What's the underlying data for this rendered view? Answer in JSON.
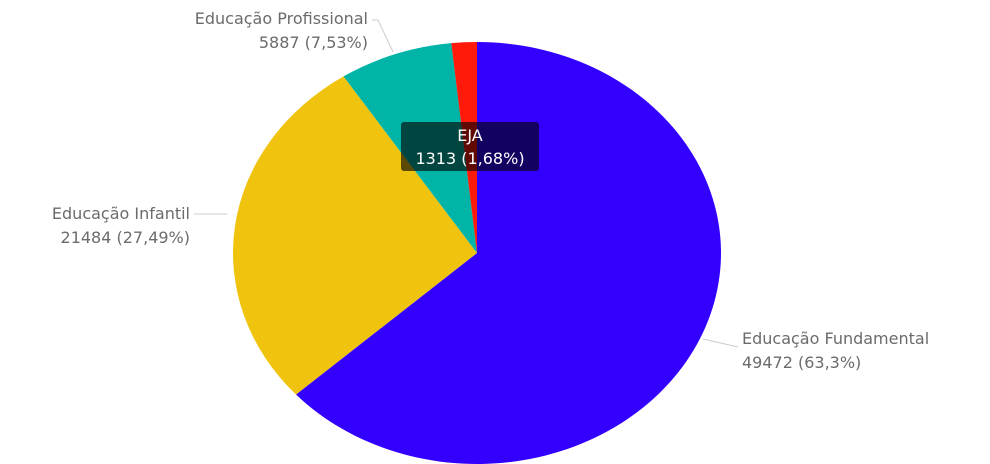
{
  "chart_data": {
    "type": "pie",
    "slices": [
      {
        "name": "Educação Fundamental",
        "value": 49472,
        "percent_label": "49472 (63,3%)",
        "color": "#3300ff"
      },
      {
        "name": "Educação Infantil",
        "value": 21484,
        "percent_label": "21484 (27,49%)",
        "color": "#f0c30f"
      },
      {
        "name": "Educação Profissional",
        "value": 5887,
        "percent_label": "5887 (7,53%)",
        "color": "#00b5a8"
      },
      {
        "name": "EJA",
        "value": 1313,
        "percent_label": "1313 (1,68%)",
        "color": "#ff1a0a"
      }
    ],
    "tooltip": {
      "name": "EJA",
      "value_label": "1313 (1,68%)"
    },
    "label_color": "#6b6b6b",
    "leader_line_color": "#cccccc"
  }
}
